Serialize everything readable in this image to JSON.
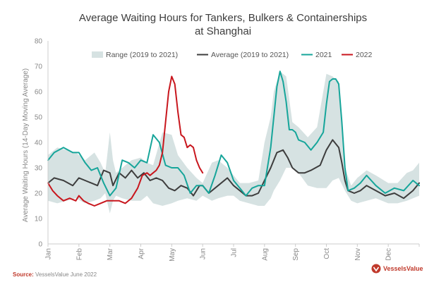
{
  "chart_data": {
    "type": "line",
    "title_line1": "Average Waiting Hours for Tankers, Bulkers & Containerships",
    "title_line2": "at Shanghai",
    "ylabel": "Average Waiting Hours (14-Day Moving Average)",
    "ylim": [
      0,
      80
    ],
    "yticks": [
      0,
      10,
      20,
      30,
      40,
      50,
      60,
      70,
      80
    ],
    "xlim": [
      0,
      12
    ],
    "months": [
      "Jan",
      "Feb",
      "Mar",
      "Apr",
      "May",
      "Jun",
      "Jul",
      "Aug",
      "Sep",
      "Oct",
      "Nov",
      "Dec"
    ],
    "legend": [
      "Range (2019 to 2021)",
      "Average (2019 to 2021)",
      "2021",
      "2022"
    ],
    "colors": {
      "range": "#d6e2e2",
      "average": "#3d3d3d",
      "y2021": "#16a59a",
      "y2022": "#c8161d",
      "axis": "#cccccc",
      "tick": "#888888"
    },
    "series": [
      {
        "name": "Range (2019 to 2021)",
        "kind": "band",
        "x": [
          0.0,
          0.3,
          0.6,
          0.9,
          1.2,
          1.5,
          1.7,
          1.85,
          2.0,
          2.1,
          2.2,
          2.4,
          2.7,
          3.0,
          3.2,
          3.4,
          3.7,
          4.0,
          4.2,
          4.5,
          4.8,
          5.0,
          5.3,
          5.5,
          5.8,
          6.0,
          6.2,
          6.5,
          6.8,
          7.0,
          7.2,
          7.3,
          7.5,
          7.7,
          7.9,
          8.1,
          8.4,
          8.7,
          9.0,
          9.2,
          9.4,
          9.6,
          9.8,
          10.0,
          10.3,
          10.6,
          11.0,
          11.3,
          11.6,
          11.8,
          12.0
        ],
        "low": [
          17,
          16,
          17,
          18,
          16,
          17,
          18,
          20,
          12,
          17,
          19,
          18,
          17,
          17,
          19,
          16,
          15,
          16,
          17,
          18,
          17,
          19,
          17,
          18,
          19,
          19,
          17,
          16,
          15,
          15,
          18,
          21,
          25,
          30,
          30,
          28,
          23,
          22,
          22,
          25,
          26,
          21,
          17,
          16,
          17,
          18,
          16,
          16,
          17,
          18,
          19
        ],
        "high": [
          35,
          38,
          37,
          36,
          33,
          36,
          32,
          28,
          44,
          33,
          28,
          30,
          33,
          34,
          32,
          31,
          44,
          43,
          35,
          30,
          26,
          24,
          32,
          33,
          30,
          27,
          24,
          24,
          25,
          40,
          50,
          60,
          68,
          66,
          48,
          46,
          42,
          46,
          67,
          66,
          64,
          30,
          23,
          26,
          29,
          27,
          24,
          24,
          28,
          29,
          32
        ]
      },
      {
        "name": "Average (2019 to 2021)",
        "kind": "line",
        "x": [
          0.0,
          0.2,
          0.5,
          0.8,
          1.0,
          1.2,
          1.4,
          1.6,
          1.8,
          2.0,
          2.1,
          2.3,
          2.5,
          2.7,
          2.9,
          3.1,
          3.3,
          3.5,
          3.7,
          3.9,
          4.1,
          4.3,
          4.5,
          4.7,
          4.9,
          5.0,
          5.2,
          5.5,
          5.8,
          6.0,
          6.2,
          6.4,
          6.6,
          6.8,
          7.0,
          7.2,
          7.4,
          7.6,
          7.75,
          7.9,
          8.1,
          8.3,
          8.5,
          8.8,
          9.0,
          9.2,
          9.4,
          9.5,
          9.6,
          9.7,
          9.9,
          10.1,
          10.3,
          10.6,
          10.9,
          11.2,
          11.5,
          11.8,
          12.0
        ],
        "y": [
          24,
          26,
          25,
          23,
          26,
          25,
          24,
          23,
          29,
          28,
          23,
          28,
          26,
          29,
          26,
          28,
          25,
          26,
          25,
          22,
          21,
          23,
          22,
          19,
          23,
          23,
          20,
          23,
          26,
          23,
          21,
          19,
          19,
          20,
          25,
          30,
          36,
          37,
          34,
          30,
          28,
          28,
          29,
          31,
          37,
          41,
          38,
          32,
          25,
          21,
          20,
          21,
          23,
          21,
          19,
          20,
          18,
          21,
          24
        ]
      },
      {
        "name": "2021",
        "kind": "line",
        "x": [
          0.0,
          0.2,
          0.5,
          0.8,
          1.0,
          1.2,
          1.4,
          1.6,
          1.8,
          2.0,
          2.2,
          2.4,
          2.6,
          2.8,
          3.0,
          3.2,
          3.4,
          3.6,
          3.8,
          4.0,
          4.2,
          4.4,
          4.6,
          4.8,
          5.0,
          5.2,
          5.4,
          5.6,
          5.8,
          6.0,
          6.2,
          6.4,
          6.6,
          6.8,
          7.0,
          7.2,
          7.4,
          7.5,
          7.6,
          7.7,
          7.8,
          7.9,
          8.0,
          8.1,
          8.3,
          8.5,
          8.7,
          8.9,
          9.0,
          9.1,
          9.2,
          9.3,
          9.4,
          9.5,
          9.6,
          9.7,
          9.9,
          10.1,
          10.3,
          10.6,
          10.9,
          11.2,
          11.5,
          11.8,
          12.0
        ],
        "y": [
          33,
          36,
          38,
          36,
          36,
          32,
          29,
          30,
          24,
          19,
          22,
          33,
          32,
          30,
          33,
          32,
          43,
          40,
          31,
          30,
          30,
          27,
          20,
          23,
          23,
          20,
          27,
          35,
          32,
          25,
          22,
          19,
          22,
          23,
          23,
          38,
          62,
          68,
          64,
          56,
          45,
          45,
          44,
          41,
          40,
          37,
          40,
          44,
          55,
          64,
          65,
          65,
          63,
          48,
          30,
          21,
          22,
          24,
          27,
          23,
          20,
          22,
          21,
          25,
          23
        ]
      },
      {
        "name": "2022",
        "kind": "line",
        "x": [
          0.0,
          0.15,
          0.3,
          0.5,
          0.7,
          0.9,
          1.0,
          1.15,
          1.3,
          1.5,
          1.7,
          1.9,
          2.1,
          2.3,
          2.5,
          2.7,
          2.9,
          3.05,
          3.2,
          3.3,
          3.4,
          3.5,
          3.6,
          3.7,
          3.8,
          3.9,
          4.0,
          4.1,
          4.2,
          4.3,
          4.4,
          4.5,
          4.6,
          4.7,
          4.8,
          4.9,
          5.0
        ],
        "y": [
          24,
          21,
          19,
          17,
          18,
          17,
          19,
          17,
          16,
          15,
          16,
          17,
          17,
          17,
          16,
          18,
          22,
          27,
          28,
          27,
          28,
          29,
          31,
          36,
          48,
          60,
          66,
          63,
          52,
          43,
          42,
          38,
          39,
          38,
          33,
          30,
          28
        ]
      }
    ],
    "source_label": "Source:",
    "source_text": "VesselsValue June 2022",
    "brand": "VesselsValue"
  }
}
